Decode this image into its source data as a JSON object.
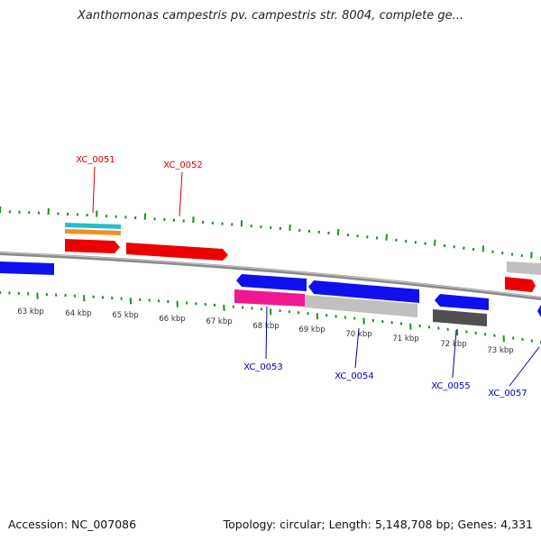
{
  "title": "Xanthomonas campestris pv. campestris str. 8004, complete ge...",
  "footer": {
    "accession": "Accession: NC_007086",
    "summary": "Topology: circular; Length: 5,148,708 bp; Genes: 4,331"
  },
  "colors": {
    "backbone": "#888888",
    "tick": "#228B22",
    "forward_label": "#cc0000",
    "reverse_label": "#0000bb",
    "red": "#ee0000",
    "blue": "#1010ee",
    "cyan": "#20c0d0",
    "orange": "#f09020",
    "magenta": "#f01890",
    "lightgray": "#c0c0c0",
    "darkgray": "#505050"
  },
  "axis": {
    "tick_labels": [
      "63 kbp",
      "64 kbp",
      "65 kbp",
      "66 kbp",
      "67 kbp",
      "68 kbp",
      "69 kbp",
      "70 kbp",
      "71 kbp",
      "72 kbp",
      "73 kbp"
    ]
  },
  "genes": [
    {
      "label": "XC_0051",
      "strand": "forward",
      "color": "red"
    },
    {
      "label": "XC_0052",
      "strand": "forward",
      "color": "red"
    },
    {
      "label": "XC_0053",
      "strand": "reverse",
      "color": "blue"
    },
    {
      "label": "XC_0054",
      "strand": "reverse",
      "color": "blue"
    },
    {
      "label": "XC_0055",
      "strand": "reverse",
      "color": "blue"
    },
    {
      "label": "XC_0057",
      "strand": "reverse",
      "color": "blue"
    }
  ]
}
